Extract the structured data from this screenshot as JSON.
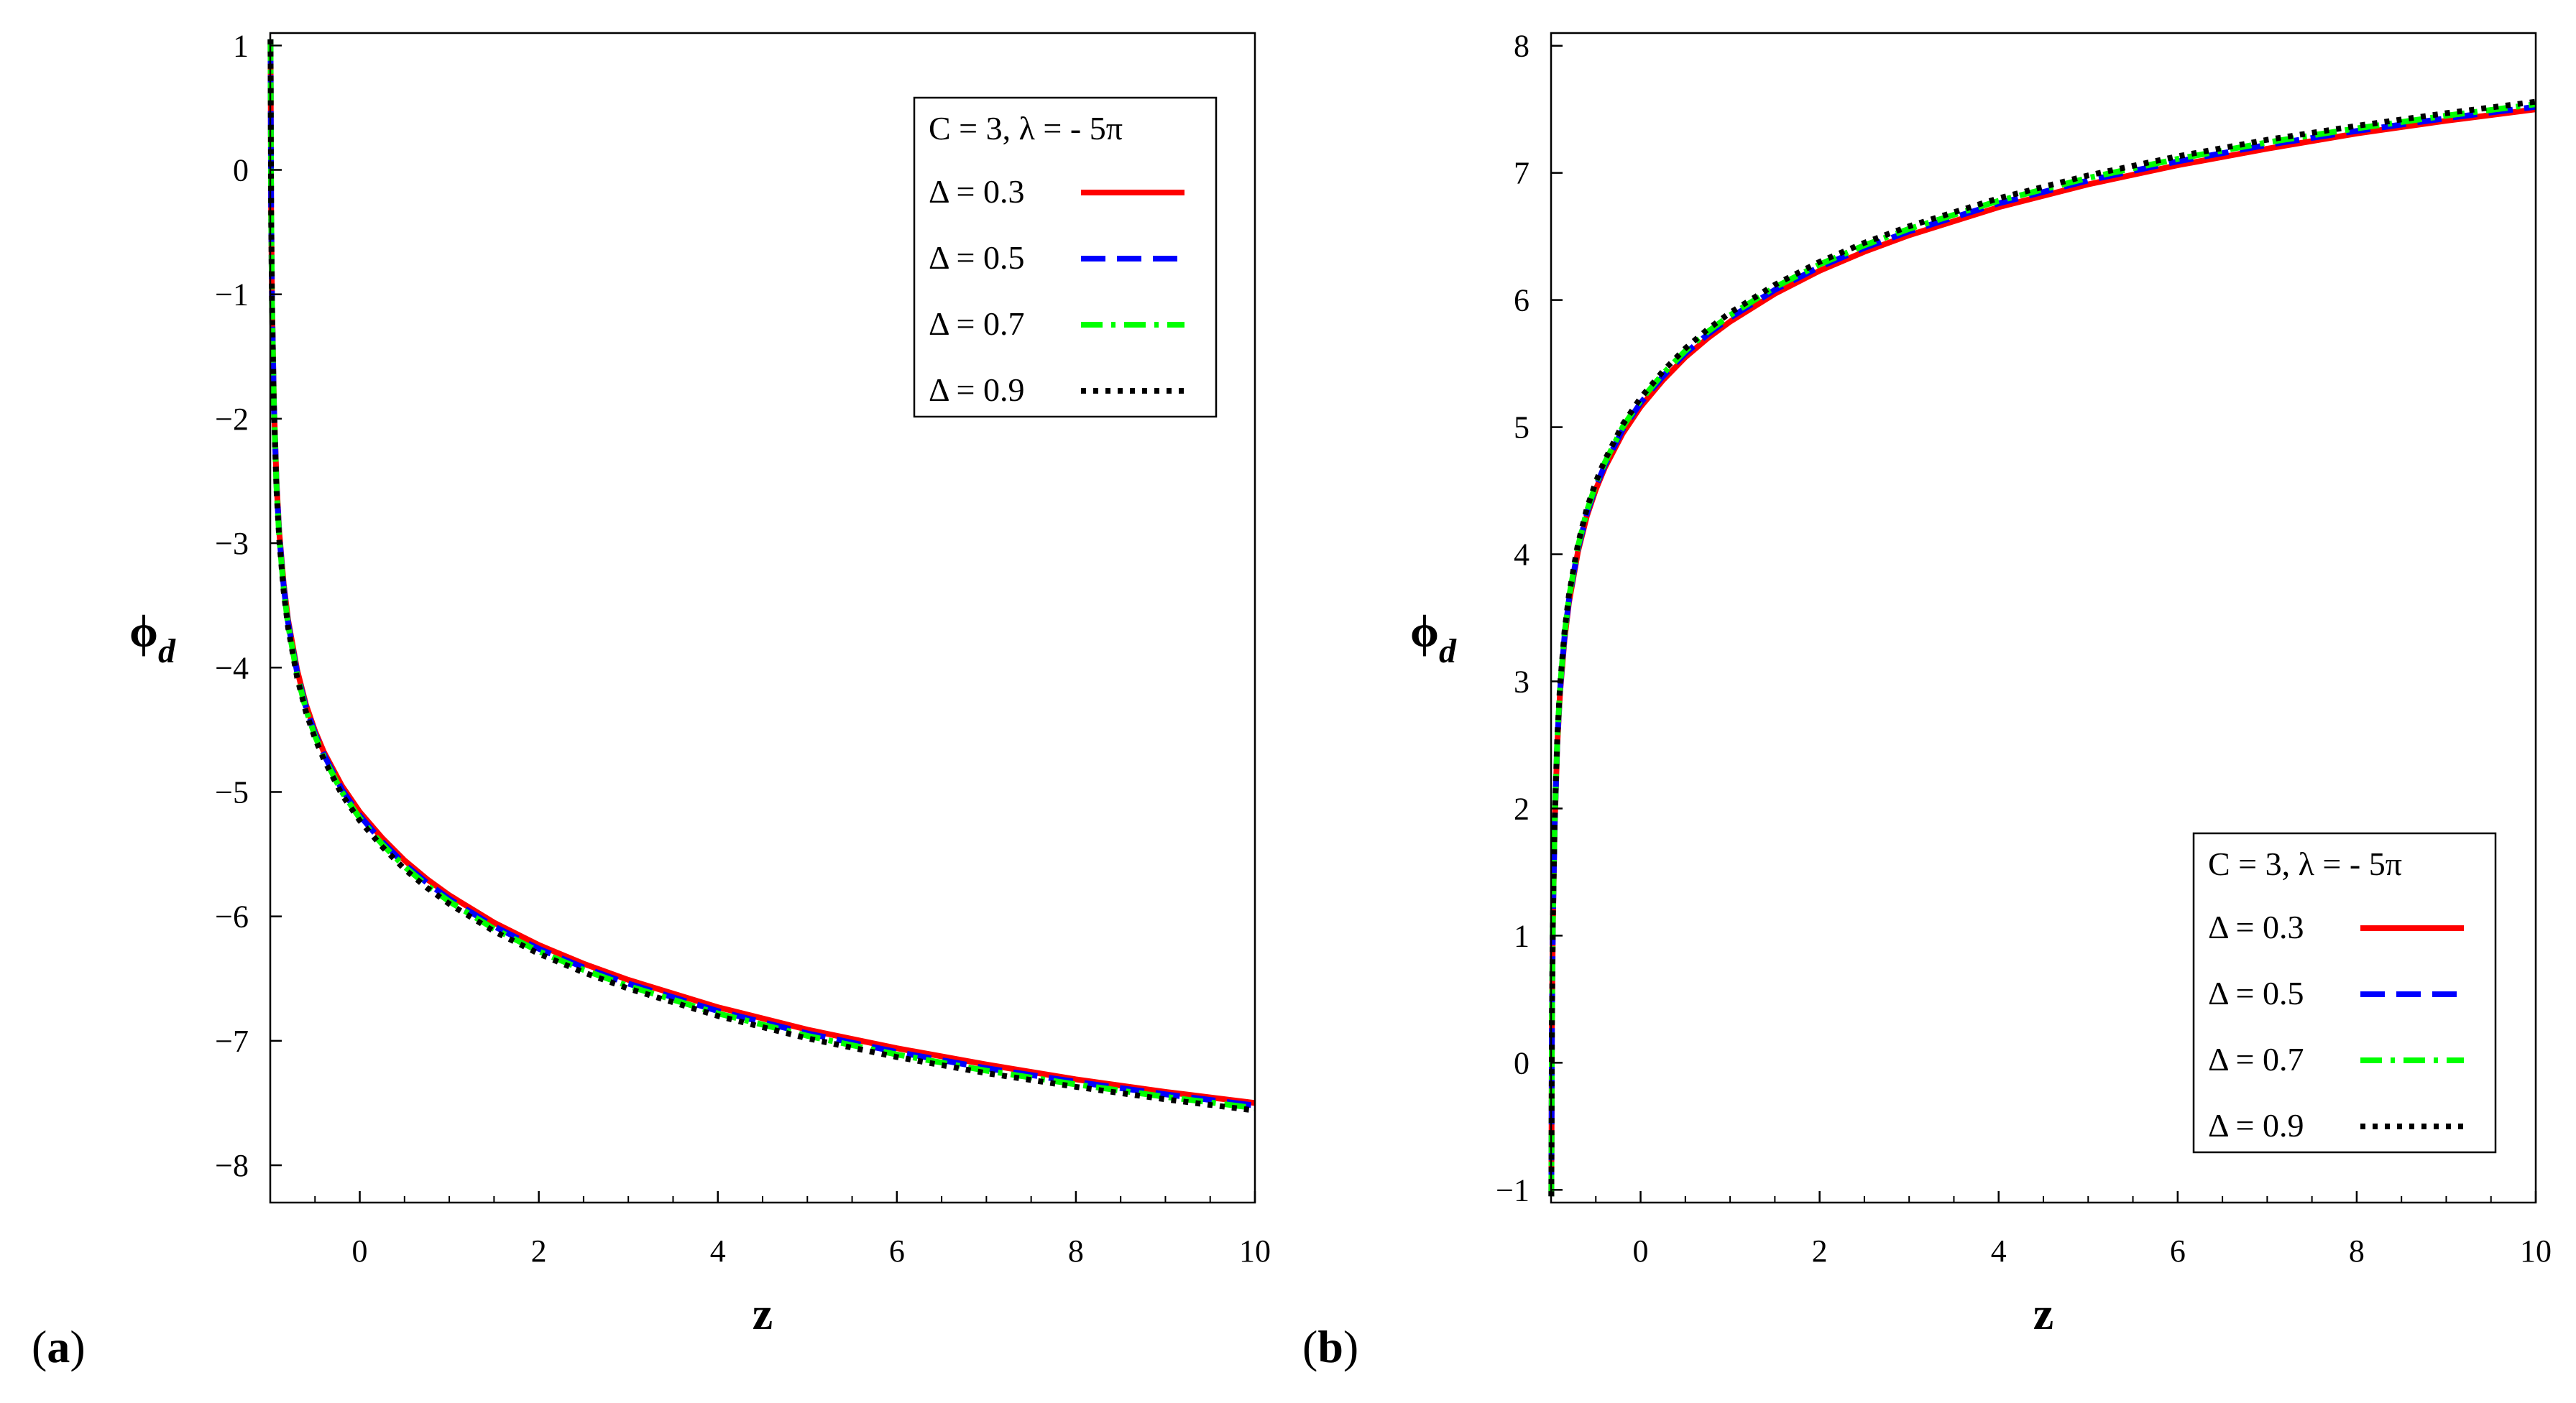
{
  "panels": [
    {
      "label": "(a)",
      "panel_letter": "a"
    },
    {
      "label": "(b)",
      "panel_letter": "b"
    }
  ],
  "colors": {
    "series_0.3": "#ff0000",
    "series_0.5": "#0000ff",
    "series_0.7": "#00ff00",
    "series_0.9": "#000000",
    "axis": "#000000",
    "background": "#ffffff"
  },
  "chart_data": [
    {
      "type": "line",
      "title": "",
      "xlabel": "z",
      "ylabel": "ϕd",
      "ylabel_main": "ϕ",
      "ylabel_sub": "d",
      "xlim": [
        -1,
        10
      ],
      "ylim": [
        -8.3,
        1.1
      ],
      "xticks": [
        0,
        2,
        4,
        6,
        8,
        10
      ],
      "yticks": [
        1,
        0,
        -1,
        -2,
        -3,
        -4,
        -5,
        -6,
        -7,
        -8
      ],
      "xtick_labels": [
        "0",
        "2",
        "4",
        "6",
        "8",
        "10"
      ],
      "ytick_labels": [
        "1",
        "0",
        "−1",
        "−2",
        "−3",
        "−4",
        "−5",
        "−6",
        "−7",
        "−8"
      ],
      "grid": false,
      "legend_position": "top-right",
      "legend_title": "C = 3, λ = - 5π",
      "series": [
        {
          "name": "Δ = 0.3",
          "color": "#ff0000",
          "dash": "solid",
          "x": [
            -0.997,
            -0.99,
            -0.98,
            -0.96,
            -0.93,
            -0.9,
            -0.85,
            -0.8,
            -0.7,
            -0.6,
            -0.5,
            -0.4,
            -0.2,
            0,
            0.25,
            0.5,
            0.75,
            1,
            1.5,
            2,
            2.5,
            3,
            4,
            5,
            6,
            7,
            8,
            9,
            10
          ],
          "y": [
            1.05,
            -0.3,
            -1.08,
            -1.86,
            -2.51,
            -2.91,
            -3.33,
            -3.62,
            -4.02,
            -4.3,
            -4.51,
            -4.68,
            -4.95,
            -5.16,
            -5.37,
            -5.55,
            -5.7,
            -5.83,
            -6.05,
            -6.23,
            -6.38,
            -6.51,
            -6.73,
            -6.91,
            -7.06,
            -7.19,
            -7.31,
            -7.41,
            -7.5
          ]
        },
        {
          "name": "Δ = 0.5",
          "color": "#0000ff",
          "dash": "dashed",
          "x": [
            -0.997,
            -0.99,
            -0.98,
            -0.96,
            -0.93,
            -0.9,
            -0.85,
            -0.8,
            -0.7,
            -0.6,
            -0.5,
            -0.4,
            -0.2,
            0,
            0.25,
            0.5,
            0.75,
            1,
            1.5,
            2,
            2.5,
            3,
            4,
            5,
            6,
            7,
            8,
            9,
            10
          ],
          "y": [
            1.05,
            -0.3,
            -1.09,
            -1.87,
            -2.53,
            -2.93,
            -3.35,
            -3.64,
            -4.04,
            -4.32,
            -4.53,
            -4.7,
            -4.98,
            -5.19,
            -5.4,
            -5.58,
            -5.73,
            -5.86,
            -6.08,
            -6.26,
            -6.41,
            -6.54,
            -6.76,
            -6.94,
            -7.09,
            -7.22,
            -7.33,
            -7.43,
            -7.52
          ]
        },
        {
          "name": "Δ = 0.7",
          "color": "#00ff00",
          "dash": "dashdot",
          "x": [
            -0.997,
            -0.99,
            -0.98,
            -0.96,
            -0.93,
            -0.9,
            -0.85,
            -0.8,
            -0.7,
            -0.6,
            -0.5,
            -0.4,
            -0.2,
            0,
            0.25,
            0.5,
            0.75,
            1,
            1.5,
            2,
            2.5,
            3,
            4,
            5,
            6,
            7,
            8,
            9,
            10
          ],
          "y": [
            1.05,
            -0.31,
            -1.1,
            -1.89,
            -2.55,
            -2.95,
            -3.37,
            -3.66,
            -4.06,
            -4.34,
            -4.55,
            -4.72,
            -5.0,
            -5.21,
            -5.42,
            -5.6,
            -5.75,
            -5.88,
            -6.1,
            -6.28,
            -6.43,
            -6.56,
            -6.78,
            -6.96,
            -7.11,
            -7.24,
            -7.35,
            -7.45,
            -7.54
          ]
        },
        {
          "name": "Δ = 0.9",
          "color": "#000000",
          "dash": "dotted",
          "x": [
            -0.997,
            -0.99,
            -0.98,
            -0.96,
            -0.93,
            -0.9,
            -0.85,
            -0.8,
            -0.7,
            -0.6,
            -0.5,
            -0.4,
            -0.2,
            0,
            0.25,
            0.5,
            0.75,
            1,
            1.5,
            2,
            2.5,
            3,
            4,
            5,
            6,
            7,
            8,
            9,
            10
          ],
          "y": [
            1.05,
            -0.31,
            -1.11,
            -1.9,
            -2.57,
            -2.97,
            -3.39,
            -3.68,
            -4.08,
            -4.36,
            -4.57,
            -4.74,
            -5.02,
            -5.23,
            -5.44,
            -5.62,
            -5.77,
            -5.9,
            -6.12,
            -6.3,
            -6.45,
            -6.58,
            -6.8,
            -6.98,
            -7.13,
            -7.26,
            -7.37,
            -7.47,
            -7.56
          ]
        }
      ]
    },
    {
      "type": "line",
      "title": "",
      "xlabel": "z",
      "ylabel": "ϕd",
      "ylabel_main": "ϕ",
      "ylabel_sub": "d",
      "xlim": [
        -1,
        10
      ],
      "ylim": [
        -1.1,
        8.1
      ],
      "xticks": [
        0,
        2,
        4,
        6,
        8,
        10
      ],
      "yticks": [
        8,
        7,
        6,
        5,
        4,
        3,
        2,
        1,
        0,
        -1
      ],
      "xtick_labels": [
        "0",
        "2",
        "4",
        "6",
        "8",
        "10"
      ],
      "ytick_labels": [
        "8",
        "7",
        "6",
        "5",
        "4",
        "3",
        "2",
        "1",
        "0",
        "−1"
      ],
      "grid": false,
      "legend_position": "bottom-right",
      "legend_title": "C = 3, λ = - 5π",
      "series": [
        {
          "name": "Δ = 0.3",
          "color": "#ff0000",
          "dash": "solid",
          "x": [
            -0.997,
            -0.99,
            -0.98,
            -0.96,
            -0.93,
            -0.9,
            -0.85,
            -0.8,
            -0.7,
            -0.6,
            -0.5,
            -0.4,
            -0.2,
            0,
            0.25,
            0.5,
            0.75,
            1,
            1.5,
            2,
            2.5,
            3,
            4,
            5,
            6,
            7,
            8,
            9,
            10
          ],
          "y": [
            -1.05,
            0.3,
            1.08,
            1.86,
            2.51,
            2.91,
            3.33,
            3.62,
            4.02,
            4.3,
            4.51,
            4.68,
            4.95,
            5.16,
            5.37,
            5.55,
            5.7,
            5.83,
            6.05,
            6.23,
            6.38,
            6.51,
            6.73,
            6.91,
            7.06,
            7.19,
            7.31,
            7.41,
            7.5
          ]
        },
        {
          "name": "Δ = 0.5",
          "color": "#0000ff",
          "dash": "dashed",
          "x": [
            -0.997,
            -0.99,
            -0.98,
            -0.96,
            -0.93,
            -0.9,
            -0.85,
            -0.8,
            -0.7,
            -0.6,
            -0.5,
            -0.4,
            -0.2,
            0,
            0.25,
            0.5,
            0.75,
            1,
            1.5,
            2,
            2.5,
            3,
            4,
            5,
            6,
            7,
            8,
            9,
            10
          ],
          "y": [
            -1.05,
            0.3,
            1.09,
            1.87,
            2.53,
            2.93,
            3.35,
            3.64,
            4.04,
            4.32,
            4.53,
            4.7,
            4.98,
            5.19,
            5.4,
            5.58,
            5.73,
            5.86,
            6.08,
            6.26,
            6.41,
            6.54,
            6.76,
            6.94,
            7.09,
            7.22,
            7.33,
            7.43,
            7.52
          ]
        },
        {
          "name": "Δ = 0.7",
          "color": "#00ff00",
          "dash": "dashdot",
          "x": [
            -0.997,
            -0.99,
            -0.98,
            -0.96,
            -0.93,
            -0.9,
            -0.85,
            -0.8,
            -0.7,
            -0.6,
            -0.5,
            -0.4,
            -0.2,
            0,
            0.25,
            0.5,
            0.75,
            1,
            1.5,
            2,
            2.5,
            3,
            4,
            5,
            6,
            7,
            8,
            9,
            10
          ],
          "y": [
            -1.05,
            0.31,
            1.1,
            1.89,
            2.55,
            2.95,
            3.37,
            3.66,
            4.06,
            4.34,
            4.55,
            4.72,
            5.0,
            5.21,
            5.42,
            5.6,
            5.75,
            5.88,
            6.1,
            6.28,
            6.43,
            6.56,
            6.78,
            6.96,
            7.11,
            7.24,
            7.35,
            7.45,
            7.54
          ]
        },
        {
          "name": "Δ = 0.9",
          "color": "#000000",
          "dash": "dotted",
          "x": [
            -0.997,
            -0.99,
            -0.98,
            -0.96,
            -0.93,
            -0.9,
            -0.85,
            -0.8,
            -0.7,
            -0.6,
            -0.5,
            -0.4,
            -0.2,
            0,
            0.25,
            0.5,
            0.75,
            1,
            1.5,
            2,
            2.5,
            3,
            4,
            5,
            6,
            7,
            8,
            9,
            10
          ],
          "y": [
            -1.05,
            0.31,
            1.11,
            1.9,
            2.57,
            2.97,
            3.39,
            3.68,
            4.08,
            4.36,
            4.57,
            4.74,
            5.02,
            5.23,
            5.44,
            5.62,
            5.77,
            5.9,
            6.12,
            6.3,
            6.45,
            6.58,
            6.8,
            6.98,
            7.13,
            7.26,
            7.37,
            7.47,
            7.56
          ]
        }
      ]
    }
  ]
}
